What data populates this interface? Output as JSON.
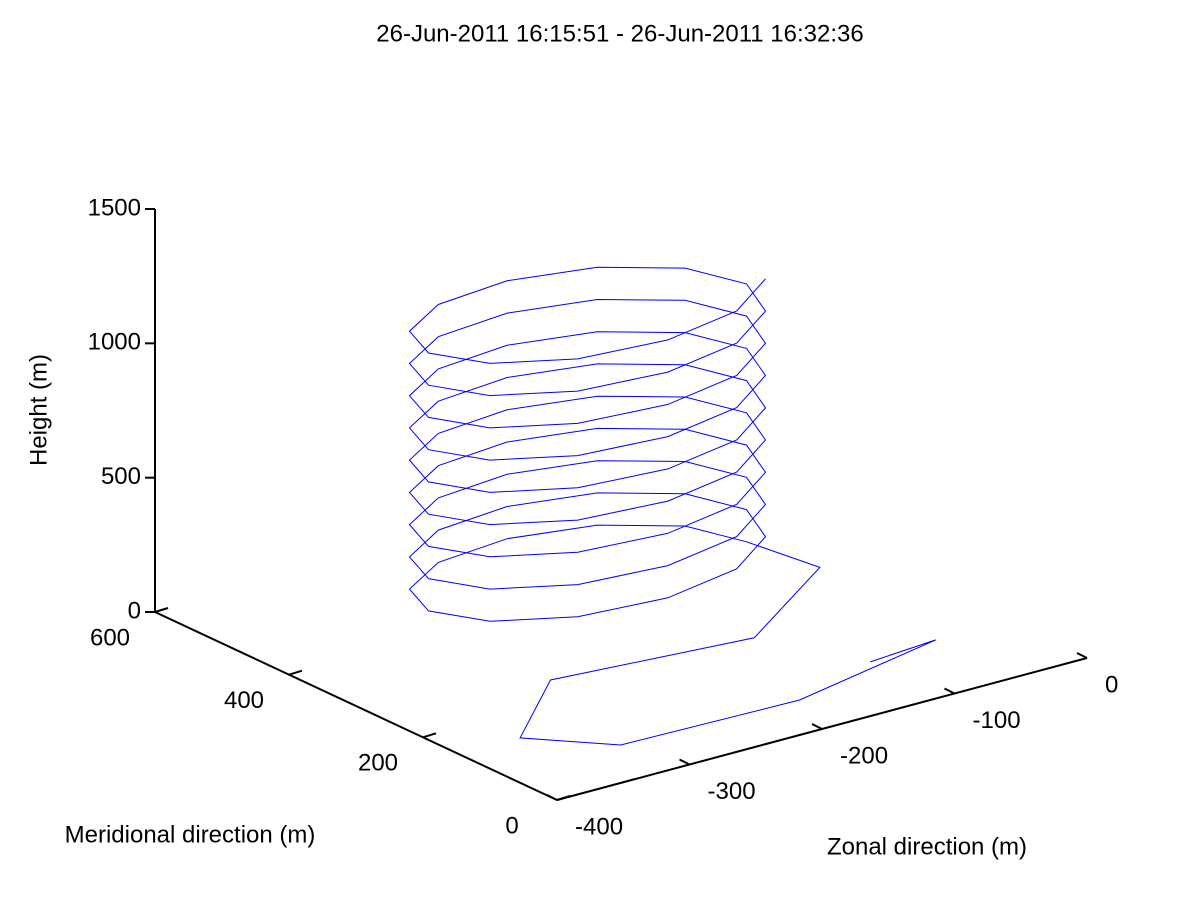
{
  "chart_data": {
    "type": "line3d",
    "title": "26-Jun-2011 16:15:51 - 26-Jun-2011 16:32:36",
    "xlabel": "Zonal direction (m)",
    "ylabel": "Meridional direction (m)",
    "zlabel": "Height (m)",
    "xlim": [
      -400,
      0
    ],
    "ylim": [
      0,
      600
    ],
    "zlim": [
      0,
      1500
    ],
    "xticks": [
      -400,
      -300,
      -200,
      -100,
      0
    ],
    "yticks": [
      0,
      200,
      400,
      600
    ],
    "zticks": [
      0,
      500,
      1000,
      1500
    ],
    "series": [
      {
        "color": "#0000ff",
        "x": [
          -108,
          -54,
          -181,
          -313,
          -354,
          -280,
          -150,
          -60,
          -80,
          -96,
          -140,
          -200,
          -260,
          -304,
          -320,
          -304,
          -260,
          -200,
          -140,
          -96,
          -80,
          -96,
          -140,
          -200,
          -260,
          -304,
          -320,
          -304,
          -260,
          -200,
          -140,
          -96,
          -80,
          -96,
          -140,
          -200,
          -260,
          -304,
          -320,
          -304,
          -260,
          -200,
          -140,
          -96,
          -80,
          -96,
          -140,
          -200,
          -260,
          -304,
          -320,
          -304,
          -260,
          -200,
          -140,
          -96,
          -80,
          -96,
          -140,
          -200,
          -260,
          -304,
          -320,
          -304,
          -260,
          -200,
          -140,
          -96,
          -80,
          -96,
          -140,
          -200,
          -260,
          -304,
          -320,
          -304,
          -260,
          -200,
          -140,
          -96,
          -80,
          -96,
          -140,
          -200,
          -260,
          -304,
          -320,
          -304,
          -260,
          -200,
          -140,
          -96,
          -80,
          -96,
          -140,
          -200,
          -260,
          -304,
          -320,
          -304,
          -260,
          -200,
          -140,
          -96,
          -80,
          -96,
          -140,
          -200,
          -260,
          -304,
          -320,
          -304,
          -260,
          -200,
          -140,
          -96
        ],
        "y": [
          110,
          119,
          71,
          77,
          146,
          247,
          200,
          280,
          350,
          410,
          454,
          470,
          454,
          410,
          350,
          290,
          246,
          230,
          246,
          290,
          350,
          410,
          454,
          470,
          454,
          410,
          350,
          290,
          246,
          230,
          246,
          290,
          350,
          410,
          454,
          470,
          454,
          410,
          350,
          290,
          246,
          230,
          246,
          290,
          350,
          410,
          454,
          470,
          454,
          410,
          350,
          290,
          246,
          230,
          246,
          290,
          350,
          410,
          454,
          470,
          454,
          410,
          350,
          290,
          246,
          230,
          246,
          290,
          350,
          410,
          454,
          470,
          454,
          410,
          350,
          290,
          246,
          230,
          246,
          290,
          350,
          410,
          454,
          470,
          454,
          410,
          350,
          290,
          246,
          230,
          246,
          290,
          350,
          410,
          454,
          470,
          454,
          410,
          350,
          290,
          246,
          230,
          246,
          290,
          350,
          410,
          454,
          470,
          454,
          410,
          350,
          290,
          246,
          230,
          246,
          290
        ],
        "z": [
          0,
          0,
          0,
          0,
          0,
          0,
          40,
          90,
          130,
          140,
          150,
          160,
          170,
          180,
          190,
          200,
          210,
          220,
          230,
          240,
          250,
          260,
          270,
          280,
          290,
          300,
          310,
          320,
          330,
          340,
          350,
          360,
          370,
          380,
          390,
          400,
          410,
          420,
          430,
          440,
          450,
          460,
          470,
          480,
          490,
          500,
          510,
          520,
          530,
          540,
          550,
          560,
          570,
          580,
          590,
          600,
          610,
          620,
          630,
          640,
          650,
          660,
          670,
          680,
          690,
          700,
          710,
          720,
          730,
          740,
          750,
          760,
          770,
          780,
          790,
          800,
          810,
          820,
          830,
          840,
          850,
          860,
          870,
          880,
          890,
          900,
          910,
          920,
          930,
          940,
          950,
          960,
          970,
          980,
          990,
          1000,
          1010,
          1020,
          1030,
          1040,
          1050,
          1060,
          1070,
          1080,
          1090,
          1100,
          1110,
          1120,
          1130,
          1140,
          1150,
          1160,
          1170,
          1180,
          1190,
          1200
        ]
      }
    ]
  }
}
